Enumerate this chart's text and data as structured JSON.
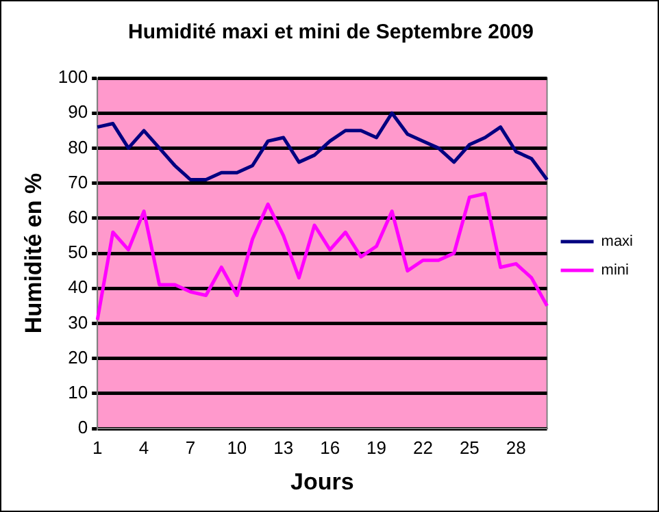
{
  "chart_data": {
    "type": "line",
    "title": "Humidité maxi et mini de Septembre 2009",
    "xlabel": "Jours",
    "ylabel": "Humidité en %",
    "categories": [
      "1",
      null,
      null,
      "4",
      null,
      null,
      "7",
      null,
      null,
      "10",
      null,
      null,
      "13",
      null,
      null,
      "16",
      null,
      null,
      "19",
      null,
      null,
      "22",
      null,
      null,
      "25",
      null,
      null,
      "28",
      null,
      null
    ],
    "series": [
      {
        "name": "maxi",
        "color": "#000080",
        "values": [
          86,
          87,
          80,
          85,
          80,
          75,
          71,
          71,
          73,
          73,
          75,
          82,
          83,
          76,
          78,
          82,
          85,
          85,
          83,
          90,
          84,
          82,
          80,
          76,
          81,
          83,
          86,
          79,
          77,
          71
        ]
      },
      {
        "name": "mini",
        "color": "#ff00ff",
        "values": [
          31,
          56,
          51,
          62,
          41,
          41,
          39,
          38,
          46,
          38,
          54,
          64,
          55,
          43,
          58,
          51,
          56,
          49,
          52,
          62,
          45,
          48,
          48,
          50,
          66,
          67,
          46,
          47,
          43,
          35
        ]
      }
    ],
    "ylim": [
      0,
      100
    ],
    "yticks": [
      0,
      10,
      20,
      30,
      40,
      50,
      60,
      70,
      80,
      90,
      100
    ],
    "grid": "y",
    "legend": "right",
    "marker": "none",
    "line_style": "solid"
  }
}
